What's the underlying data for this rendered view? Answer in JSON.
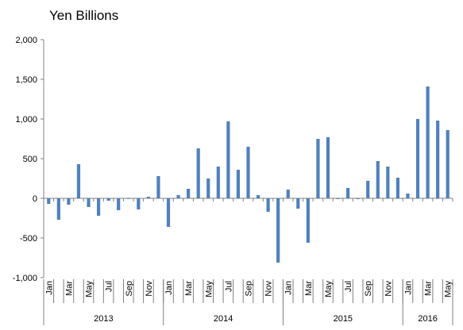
{
  "chart_data": {
    "type": "bar",
    "title": "Yen Billions",
    "xlabel": "",
    "ylabel": "",
    "ylim": [
      -1000,
      2000
    ],
    "yticks": [
      2000,
      1500,
      1000,
      500,
      0,
      -500,
      -1000
    ],
    "ytick_labels": [
      "2,000",
      "1,500",
      "1,000",
      "500",
      "0",
      "-500",
      "-1,000"
    ],
    "grid": false,
    "legend": "none",
    "bar_color": "#4F81BD",
    "categories": [
      "Jan 2013",
      "Feb 2013",
      "Mar 2013",
      "Apr 2013",
      "May 2013",
      "Jun 2013",
      "Jul 2013",
      "Aug 2013",
      "Sep 2013",
      "Oct 2013",
      "Nov 2013",
      "Dec 2013",
      "Jan 2014",
      "Feb 2014",
      "Mar 2014",
      "Apr 2014",
      "May 2014",
      "Jun 2014",
      "Jul 2014",
      "Aug 2014",
      "Sep 2014",
      "Oct 2014",
      "Nov 2014",
      "Dec 2014",
      "Jan 2015",
      "Feb 2015",
      "Mar 2015",
      "Apr 2015",
      "May 2015",
      "Jun 2015",
      "Jul 2015",
      "Aug 2015",
      "Sep 2015",
      "Oct 2015",
      "Nov 2015",
      "Dec 2015",
      "Jan 2016",
      "Feb 2016",
      "Mar 2016",
      "Apr 2016",
      "May 2016"
    ],
    "values": [
      -70,
      -270,
      -80,
      430,
      -110,
      -220,
      -30,
      -150,
      0,
      -140,
      20,
      280,
      -360,
      40,
      120,
      630,
      250,
      400,
      970,
      360,
      650,
      40,
      -170,
      -810,
      110,
      -130,
      -560,
      750,
      770,
      -10,
      130,
      -10,
      220,
      470,
      400,
      260,
      60,
      1000,
      1410,
      980,
      860
    ],
    "x_tick_labels": [
      "Jan",
      "",
      "Mar",
      "",
      "May",
      "",
      "Jul",
      "",
      "Sep",
      "",
      "Nov",
      "",
      "Jan",
      "",
      "Mar",
      "",
      "May",
      "",
      "Jul",
      "",
      "Sep",
      "",
      "Nov",
      "",
      "Jan",
      "",
      "Mar",
      "",
      "May",
      "",
      "Jul",
      "",
      "Sep",
      "",
      "Nov",
      "",
      "Jan",
      "",
      "Mar",
      "",
      "May"
    ],
    "year_groups": [
      {
        "label": "2013",
        "count": 12
      },
      {
        "label": "2014",
        "count": 12
      },
      {
        "label": "2015",
        "count": 12
      },
      {
        "label": "2016",
        "count": 5
      }
    ]
  }
}
